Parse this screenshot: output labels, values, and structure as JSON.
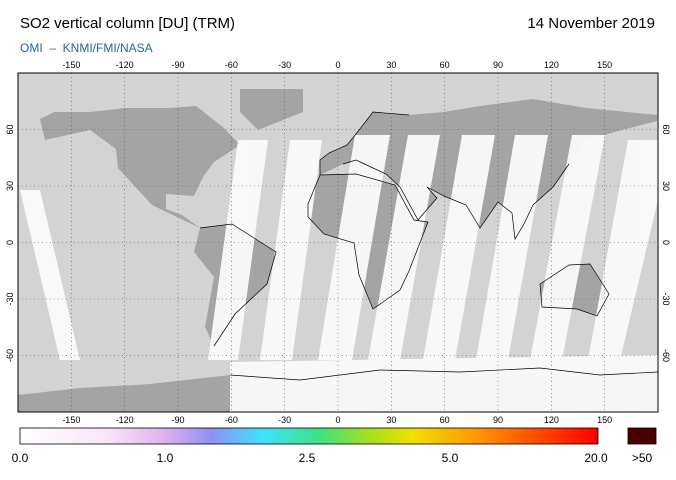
{
  "header": {
    "title": "SO2 vertical column [DU] (TRM)",
    "date": "14 November 2019",
    "source": "OMI  –  KNMI/FMI/NASA"
  },
  "map": {
    "longitude_ticks": [
      -150,
      -120,
      -90,
      -60,
      -30,
      0,
      30,
      60,
      90,
      120,
      150
    ],
    "latitude_ticks": [
      -60,
      -30,
      0,
      30,
      60
    ]
  },
  "colorbar": {
    "labels": [
      "0.0",
      "1.0",
      "2.5",
      "5.0",
      "20.0",
      ">50"
    ]
  }
}
